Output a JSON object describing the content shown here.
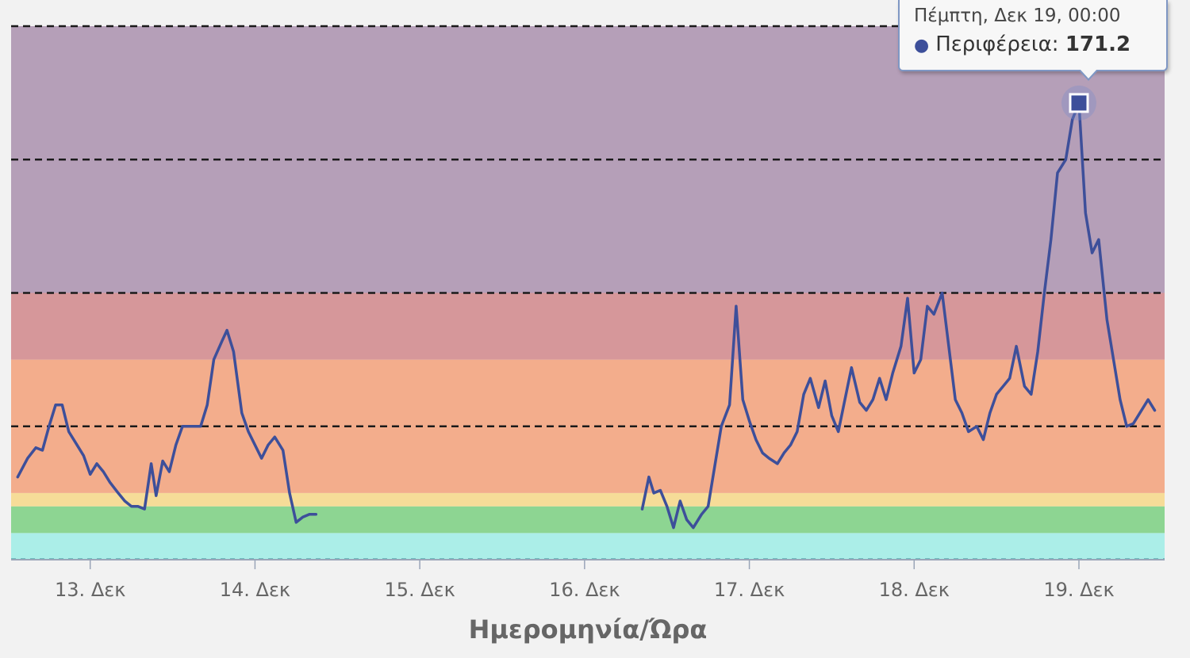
{
  "chart_data": {
    "type": "line",
    "xlabel": "Ημερομηνία/Ώρα",
    "x_ticks": [
      "13. Δεκ",
      "14. Δεκ",
      "15. Δεκ",
      "16. Δεκ",
      "17. Δεκ",
      "18. Δεκ",
      "19. Δεκ"
    ],
    "x_range_days": [
      12.52,
      19.52
    ],
    "ylim": [
      0,
      200
    ],
    "bands": [
      {
        "from": 0,
        "to": 10,
        "color": "#abeee8"
      },
      {
        "from": 10,
        "to": 20,
        "color": "#8dd592"
      },
      {
        "from": 20,
        "to": 25,
        "color": "#f6dc98"
      },
      {
        "from": 25,
        "to": 75,
        "color": "#f3ad8c"
      },
      {
        "from": 75,
        "to": 100,
        "color": "#d6979a"
      },
      {
        "from": 100,
        "to": 200,
        "color": "#b59fb8"
      }
    ],
    "threshold_lines": [
      50,
      100,
      150,
      200
    ],
    "series": [
      {
        "name": "Περιφέρεια",
        "color": "#3d4f9a",
        "points": [
          [
            12.56,
            31
          ],
          [
            12.62,
            38
          ],
          [
            12.67,
            42
          ],
          [
            12.71,
            41
          ],
          [
            12.75,
            50
          ],
          [
            12.79,
            58
          ],
          [
            12.83,
            58
          ],
          [
            12.87,
            48
          ],
          [
            12.92,
            43
          ],
          [
            12.96,
            39
          ],
          [
            13.0,
            32
          ],
          [
            13.04,
            36
          ],
          [
            13.08,
            33
          ],
          [
            13.12,
            29
          ],
          [
            13.17,
            25
          ],
          [
            13.21,
            22
          ],
          [
            13.25,
            20
          ],
          [
            13.29,
            20
          ],
          [
            13.33,
            19
          ],
          [
            13.37,
            36
          ],
          [
            13.4,
            24
          ],
          [
            13.44,
            37
          ],
          [
            13.48,
            33
          ],
          [
            13.52,
            43
          ],
          [
            13.56,
            50
          ],
          [
            13.63,
            50
          ],
          [
            13.67,
            50
          ],
          [
            13.71,
            58
          ],
          [
            13.75,
            75
          ],
          [
            13.8,
            82
          ],
          [
            13.83,
            86
          ],
          [
            13.87,
            78
          ],
          [
            13.92,
            55
          ],
          [
            13.96,
            48
          ],
          [
            14.0,
            43
          ],
          [
            14.04,
            38
          ],
          [
            14.08,
            43
          ],
          [
            14.12,
            46
          ],
          [
            14.17,
            41
          ],
          [
            14.21,
            25
          ],
          [
            14.25,
            14
          ],
          [
            14.29,
            16
          ],
          [
            14.33,
            17
          ],
          [
            14.37,
            17
          ],
          null,
          [
            16.35,
            19
          ],
          [
            16.39,
            31
          ],
          [
            16.42,
            25
          ],
          [
            16.46,
            26
          ],
          [
            16.5,
            20
          ],
          [
            16.54,
            12
          ],
          [
            16.58,
            22
          ],
          [
            16.62,
            15
          ],
          [
            16.66,
            12
          ],
          [
            16.71,
            17
          ],
          [
            16.75,
            20
          ],
          [
            16.79,
            35
          ],
          [
            16.83,
            50
          ],
          [
            16.88,
            58
          ],
          [
            16.92,
            95
          ],
          [
            16.96,
            60
          ],
          [
            17.0,
            52
          ],
          [
            17.04,
            45
          ],
          [
            17.08,
            40
          ],
          [
            17.12,
            38
          ],
          [
            17.17,
            36
          ],
          [
            17.21,
            40
          ],
          [
            17.25,
            43
          ],
          [
            17.29,
            48
          ],
          [
            17.33,
            62
          ],
          [
            17.37,
            68
          ],
          [
            17.42,
            57
          ],
          [
            17.46,
            67
          ],
          [
            17.5,
            54
          ],
          [
            17.54,
            48
          ],
          [
            17.58,
            60
          ],
          [
            17.62,
            72
          ],
          [
            17.67,
            59
          ],
          [
            17.71,
            56
          ],
          [
            17.75,
            60
          ],
          [
            17.79,
            68
          ],
          [
            17.83,
            60
          ],
          [
            17.87,
            70
          ],
          [
            17.92,
            80
          ],
          [
            17.96,
            98
          ],
          [
            18.0,
            70
          ],
          [
            18.04,
            75
          ],
          [
            18.08,
            95
          ],
          [
            18.12,
            92
          ],
          [
            18.17,
            100
          ],
          [
            18.21,
            80
          ],
          [
            18.25,
            60
          ],
          [
            18.29,
            55
          ],
          [
            18.33,
            48
          ],
          [
            18.38,
            50
          ],
          [
            18.42,
            45
          ],
          [
            18.46,
            55
          ],
          [
            18.5,
            62
          ],
          [
            18.54,
            65
          ],
          [
            18.58,
            68
          ],
          [
            18.62,
            80
          ],
          [
            18.67,
            65
          ],
          [
            18.71,
            62
          ],
          [
            18.75,
            78
          ],
          [
            18.79,
            100
          ],
          [
            18.83,
            120
          ],
          [
            18.87,
            145
          ],
          [
            18.92,
            150
          ],
          [
            18.96,
            165
          ],
          [
            19.0,
            171.2
          ],
          [
            19.04,
            130
          ],
          [
            19.08,
            115
          ],
          [
            19.12,
            120
          ],
          [
            19.17,
            90
          ],
          [
            19.21,
            75
          ],
          [
            19.25,
            60
          ],
          [
            19.29,
            50
          ],
          [
            19.33,
            51
          ],
          [
            19.37,
            55
          ],
          [
            19.42,
            60
          ],
          [
            19.46,
            56
          ]
        ]
      }
    ],
    "tooltip": {
      "title": "Πέμπτη, Δεκ 19, 00:00",
      "series_label": "Περιφέρεια:",
      "value": "171.2",
      "x": 19.0
    }
  }
}
